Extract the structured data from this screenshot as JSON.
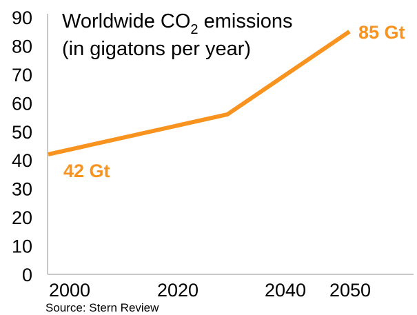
{
  "chart_data": {
    "type": "line",
    "title_prefix": "Worldwide CO",
    "title_subscript": "2",
    "title_suffix": " emissions",
    "title_line2": "(in gigatons per year)",
    "xlabel": "",
    "ylabel": "",
    "x_ticks": [
      "2000",
      "2020",
      "2040",
      "2050"
    ],
    "y_ticks": [
      "0",
      "10",
      "20",
      "30",
      "40",
      "50",
      "60",
      "70",
      "80",
      "90"
    ],
    "ylim": [
      0,
      90
    ],
    "grid": false,
    "series": [
      {
        "color": "#f7931e",
        "points": [
          {
            "x": 2000,
            "y": 42
          },
          {
            "x": 2030,
            "y": 56
          },
          {
            "x": 2050,
            "y": 85
          }
        ]
      }
    ],
    "annotations": [
      {
        "text": "42 Gt",
        "x": 2000,
        "y": 42
      },
      {
        "text": "85 Gt",
        "x": 2050,
        "y": 85
      }
    ],
    "source": "Source: Stern Review"
  }
}
